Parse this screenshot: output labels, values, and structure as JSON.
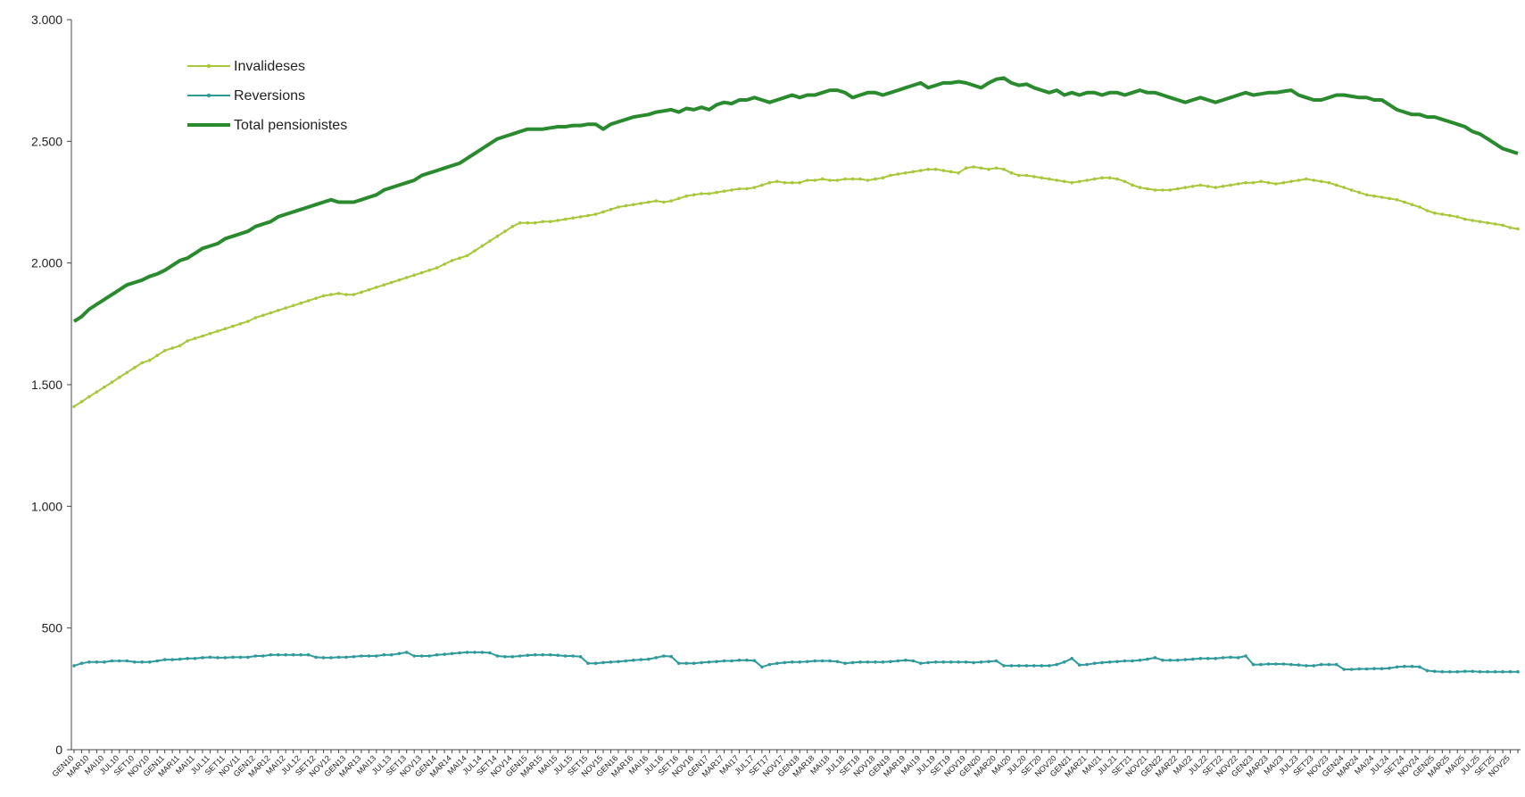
{
  "chart_data": {
    "type": "line",
    "categories": [
      "GEN10",
      null,
      "MAR10",
      null,
      "MAI10",
      null,
      "JUL10",
      null,
      "SET10",
      null,
      "NOV10",
      null,
      "GEN11",
      null,
      "MAR11",
      null,
      "MAI11",
      null,
      "JUL11",
      null,
      "SET11",
      null,
      "NOV11",
      null,
      "GEN12",
      null,
      "MAR12",
      null,
      "MAI12",
      null,
      "JUL12",
      null,
      "SET12",
      null,
      "NOV12",
      null,
      "GEN13",
      null,
      "MAR13",
      null,
      "MAI13",
      null,
      "JUL13",
      null,
      "SET13",
      null,
      "NOV13",
      null,
      "GEN14",
      null,
      "MAR14",
      null,
      "MAI14",
      null,
      "JUL14",
      null,
      "SET14",
      null,
      "NOV14",
      null,
      "GEN15",
      null,
      "MAR15",
      null,
      "MAI15",
      null,
      "JUL15",
      null,
      "SET15",
      null,
      "NOV15",
      null,
      "GEN16",
      null,
      "MAR16",
      null,
      "MAI16",
      null,
      "JUL16",
      null,
      "SET16",
      null,
      "NOV16",
      null,
      "GEN17",
      null,
      "MAR17",
      null,
      "MAI17",
      null,
      "JUL17",
      null,
      "SET17",
      null,
      "NOV17",
      null,
      "GEN18",
      null,
      "MAR18",
      null,
      "MAI18",
      null,
      "JUL18",
      null,
      "SET18",
      null,
      "NOV18",
      null,
      "GEN19",
      null,
      "MAR19",
      null,
      "MAI19",
      null,
      "JUL19",
      null,
      "SET19",
      null,
      "NOV19",
      null,
      "GEN20",
      null,
      "MAR20",
      null,
      "MAI20",
      null,
      "JUL20",
      null,
      "SET20",
      null,
      "NOV20",
      null,
      "GEN21",
      null,
      "MAR21",
      null,
      "MAI21",
      null,
      "JUL21",
      null,
      "SET21",
      null,
      "NOV21",
      null,
      "GEN22",
      null,
      "MAR22",
      null,
      "MAI22",
      null,
      "JUL22",
      null,
      "SET22",
      null,
      "NOV22",
      null,
      "GEN23",
      null,
      "MAR23",
      null,
      "MAI23",
      null,
      "JUL23",
      null,
      "SET23",
      null,
      "NOV23",
      null,
      "GEN24",
      null,
      "MAR24",
      null,
      "MAI24",
      null,
      "JUL24",
      null,
      "SET24",
      null,
      "NOV24",
      null,
      "GEN25",
      null,
      "MAR25",
      null,
      "MAI25",
      null,
      "JUL25",
      null,
      "SET25",
      null,
      "NOV25",
      null
    ],
    "series": [
      {
        "name": "Invalideses",
        "color": "#a8c83c",
        "markers": true,
        "width": 2,
        "values": [
          1410,
          1430,
          1450,
          1470,
          1490,
          1510,
          1530,
          1550,
          1570,
          1590,
          1600,
          1620,
          1640,
          1650,
          1660,
          1680,
          1690,
          1700,
          1710,
          1720,
          1730,
          1740,
          1750,
          1760,
          1775,
          1785,
          1795,
          1805,
          1815,
          1825,
          1835,
          1845,
          1855,
          1865,
          1870,
          1875,
          1870,
          1870,
          1880,
          1890,
          1900,
          1910,
          1920,
          1930,
          1940,
          1950,
          1960,
          1970,
          1980,
          1995,
          2010,
          2020,
          2030,
          2050,
          2070,
          2090,
          2110,
          2130,
          2150,
          2165,
          2165,
          2165,
          2170,
          2170,
          2175,
          2180,
          2185,
          2190,
          2195,
          2200,
          2210,
          2220,
          2230,
          2235,
          2240,
          2245,
          2250,
          2255,
          2250,
          2255,
          2265,
          2275,
          2280,
          2285,
          2285,
          2290,
          2295,
          2300,
          2305,
          2305,
          2310,
          2320,
          2330,
          2335,
          2330,
          2330,
          2330,
          2340,
          2340,
          2345,
          2340,
          2340,
          2345,
          2345,
          2345,
          2340,
          2345,
          2350,
          2360,
          2365,
          2370,
          2375,
          2380,
          2385,
          2385,
          2380,
          2375,
          2370,
          2390,
          2395,
          2390,
          2385,
          2390,
          2385,
          2370,
          2360,
          2360,
          2355,
          2350,
          2345,
          2340,
          2335,
          2330,
          2335,
          2340,
          2345,
          2350,
          2350,
          2345,
          2335,
          2320,
          2310,
          2305,
          2300,
          2300,
          2300,
          2305,
          2310,
          2315,
          2320,
          2315,
          2310,
          2315,
          2320,
          2325,
          2330,
          2330,
          2335,
          2330,
          2325,
          2330,
          2335,
          2340,
          2345,
          2340,
          2335,
          2330,
          2320,
          2310,
          2300,
          2290,
          2280,
          2275,
          2270,
          2265,
          2260,
          2250,
          2240,
          2230,
          2215,
          2205,
          2200,
          2195,
          2190,
          2180,
          2175,
          2170,
          2165,
          2160,
          2155,
          2145,
          2140
        ]
      },
      {
        "name": "Reversions",
        "color": "#2e9a9c",
        "markers": true,
        "width": 2,
        "values": [
          345,
          355,
          360,
          360,
          360,
          365,
          365,
          365,
          360,
          360,
          360,
          365,
          370,
          370,
          372,
          375,
          375,
          378,
          380,
          378,
          378,
          380,
          380,
          380,
          385,
          385,
          390,
          390,
          390,
          390,
          390,
          390,
          380,
          378,
          378,
          380,
          380,
          382,
          385,
          385,
          385,
          390,
          390,
          395,
          400,
          385,
          385,
          385,
          390,
          392,
          395,
          398,
          400,
          400,
          400,
          398,
          385,
          382,
          382,
          385,
          388,
          390,
          390,
          390,
          388,
          385,
          385,
          382,
          355,
          355,
          358,
          360,
          362,
          365,
          368,
          370,
          372,
          378,
          385,
          383,
          355,
          355,
          355,
          358,
          360,
          362,
          365,
          365,
          368,
          368,
          366,
          340,
          350,
          355,
          358,
          360,
          360,
          362,
          365,
          365,
          365,
          362,
          355,
          358,
          360,
          360,
          360,
          360,
          362,
          365,
          368,
          365,
          355,
          358,
          360,
          360,
          360,
          360,
          360,
          358,
          360,
          362,
          365,
          345,
          345,
          345,
          345,
          345,
          345,
          345,
          350,
          360,
          375,
          348,
          350,
          355,
          358,
          360,
          362,
          365,
          365,
          368,
          372,
          378,
          368,
          368,
          368,
          370,
          372,
          375,
          375,
          375,
          378,
          380,
          378,
          385,
          350,
          350,
          352,
          352,
          352,
          350,
          348,
          345,
          345,
          350,
          350,
          350,
          330,
          330,
          332,
          332,
          333,
          333,
          335,
          340,
          342,
          342,
          340,
          325,
          322,
          320,
          320,
          320,
          322,
          322,
          320,
          320,
          320,
          320,
          320,
          320
        ]
      },
      {
        "name": "Total pensionistes",
        "color": "#2a8a2e",
        "markers": false,
        "width": 4,
        "values": [
          1760,
          1780,
          1810,
          1830,
          1850,
          1870,
          1890,
          1910,
          1920,
          1930,
          1945,
          1955,
          1970,
          1990,
          2010,
          2020,
          2040,
          2060,
          2070,
          2080,
          2100,
          2110,
          2120,
          2130,
          2150,
          2160,
          2170,
          2190,
          2200,
          2210,
          2220,
          2230,
          2240,
          2250,
          2260,
          2250,
          2250,
          2250,
          2260,
          2270,
          2280,
          2300,
          2310,
          2320,
          2330,
          2340,
          2360,
          2370,
          2380,
          2390,
          2400,
          2410,
          2430,
          2450,
          2470,
          2490,
          2510,
          2520,
          2530,
          2540,
          2550,
          2550,
          2550,
          2555,
          2560,
          2560,
          2565,
          2565,
          2570,
          2570,
          2550,
          2570,
          2580,
          2590,
          2600,
          2605,
          2610,
          2620,
          2625,
          2630,
          2620,
          2635,
          2630,
          2640,
          2630,
          2650,
          2660,
          2655,
          2670,
          2670,
          2680,
          2670,
          2660,
          2670,
          2680,
          2690,
          2680,
          2690,
          2690,
          2700,
          2710,
          2710,
          2700,
          2680,
          2690,
          2700,
          2700,
          2690,
          2700,
          2710,
          2720,
          2730,
          2740,
          2720,
          2730,
          2740,
          2740,
          2745,
          2740,
          2730,
          2720,
          2740,
          2755,
          2760,
          2740,
          2730,
          2735,
          2720,
          2710,
          2700,
          2710,
          2690,
          2700,
          2690,
          2700,
          2700,
          2690,
          2700,
          2700,
          2690,
          2700,
          2710,
          2700,
          2700,
          2690,
          2680,
          2670,
          2660,
          2670,
          2680,
          2670,
          2660,
          2670,
          2680,
          2690,
          2700,
          2690,
          2695,
          2700,
          2700,
          2705,
          2710,
          2690,
          2680,
          2670,
          2670,
          2680,
          2690,
          2690,
          2685,
          2680,
          2680,
          2670,
          2670,
          2650,
          2630,
          2620,
          2610,
          2610,
          2600,
          2600,
          2590,
          2580,
          2570,
          2560,
          2540,
          2530,
          2510,
          2490,
          2470,
          2460,
          2450
        ]
      }
    ],
    "ylim": [
      0,
      3000
    ],
    "yticks": [
      0,
      500,
      {
        "value": 1000,
        "label": "1.000"
      },
      {
        "value": 1500,
        "label": "1.500"
      },
      {
        "value": 2000,
        "label": "2.000"
      },
      {
        "value": 2500,
        "label": "2.500"
      },
      {
        "value": 3000,
        "label": "3.000"
      }
    ],
    "grid": false,
    "legend": "upper-left"
  }
}
